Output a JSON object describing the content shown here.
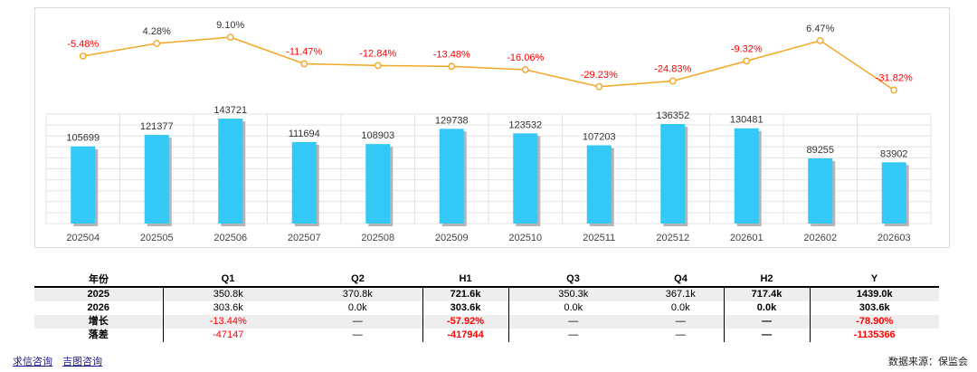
{
  "chart_data": {
    "type": "bar+line",
    "categories": [
      "202504",
      "202505",
      "202506",
      "202507",
      "202508",
      "202509",
      "202510",
      "202511",
      "202512",
      "202601",
      "202602",
      "202603"
    ],
    "bar_series": {
      "name": "value",
      "values": [
        105699,
        121377,
        143721,
        111694,
        108903,
        129738,
        123532,
        107203,
        136352,
        130481,
        89255,
        83902
      ],
      "color": "#33c8f6"
    },
    "line_series": {
      "name": "growth",
      "values": [
        -5.48,
        4.28,
        9.1,
        -11.47,
        -12.84,
        -13.48,
        -16.06,
        -29.23,
        -24.83,
        -9.32,
        6.47,
        -31.82
      ],
      "labels": [
        "-5.48%",
        "4.28%",
        "9.10%",
        "-11.47%",
        "-12.84%",
        "-13.48%",
        "-16.06%",
        "-29.23%",
        "-24.83%",
        "-9.32%",
        "6.47%",
        "-31.82%"
      ],
      "color": "#f5a623"
    },
    "bar_ylim": [
      0,
      150000
    ],
    "line_ylim": [
      -35,
      12
    ],
    "grid": true,
    "negative_color": "#ff0000",
    "positive_color": "#333333"
  },
  "table": {
    "headers": [
      "年份",
      "Q1",
      "Q2",
      "H1",
      "Q3",
      "Q4",
      "H2",
      "Y"
    ],
    "rows": [
      {
        "label": "2025",
        "cells": [
          "350.8k",
          "370.8k",
          "721.6k",
          "350.3k",
          "367.1k",
          "717.4k",
          "1439.0k"
        ]
      },
      {
        "label": "2026",
        "cells": [
          "303.6k",
          "0.0k",
          "303.6k",
          "0.0k",
          "0.0k",
          "0.0k",
          "303.6k"
        ]
      },
      {
        "label": "增长",
        "cells": [
          "-13.44%",
          "—",
          "-57.92%",
          "—",
          "—",
          "—",
          "-78.90%"
        ]
      },
      {
        "label": "落差",
        "cells": [
          "-47147",
          "—",
          "-417944",
          "—",
          "—",
          "—",
          "-1135366"
        ]
      }
    ]
  },
  "footer": {
    "links": [
      "求信咨询",
      "吉图咨询"
    ],
    "source": "数据来源：保监会"
  }
}
